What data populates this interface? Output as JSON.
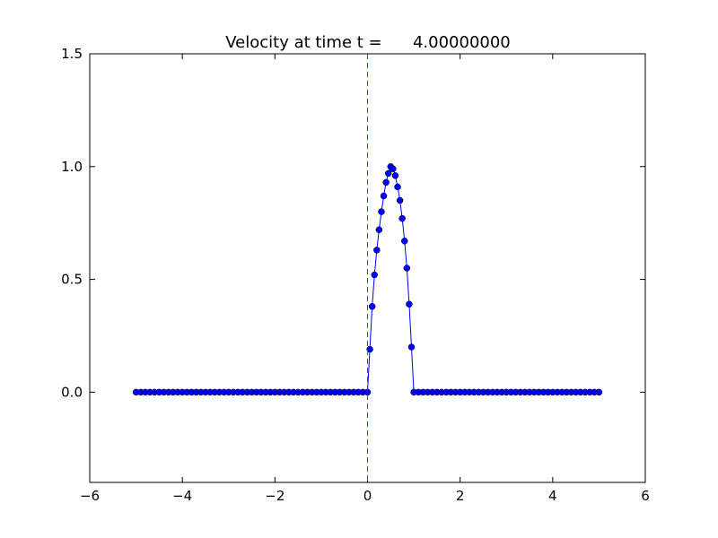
{
  "chart_data": {
    "type": "line",
    "title": "Velocity at time t =      4.00000000",
    "x": [
      -5,
      -4.9,
      -4.8,
      -4.7,
      -4.6,
      -4.5,
      -4.4,
      -4.3,
      -4.2,
      -4.1,
      -4,
      -3.9,
      -3.8,
      -3.7,
      -3.6,
      -3.5,
      -3.4,
      -3.3,
      -3.2,
      -3.1,
      -3,
      -2.9,
      -2.8,
      -2.7,
      -2.6,
      -2.5,
      -2.4,
      -2.3,
      -2.2,
      -2.1,
      -2,
      -1.9,
      -1.8,
      -1.7,
      -1.6,
      -1.5,
      -1.4,
      -1.3,
      -1.2,
      -1.1,
      -1,
      -0.9,
      -0.8,
      -0.7,
      -0.6,
      -0.5,
      -0.4,
      -0.3,
      -0.2,
      -0.1,
      0,
      0.05,
      0.1,
      0.15,
      0.2,
      0.25,
      0.3,
      0.35,
      0.4,
      0.45,
      0.5,
      0.55,
      0.6,
      0.65,
      0.7,
      0.75,
      0.8,
      0.85,
      0.9,
      0.95,
      1,
      1.1,
      1.2,
      1.3,
      1.4,
      1.5,
      1.6,
      1.7,
      1.8,
      1.9,
      2,
      2.1,
      2.2,
      2.3,
      2.4,
      2.5,
      2.6,
      2.7,
      2.8,
      2.9,
      3,
      3.1,
      3.2,
      3.3,
      3.4,
      3.5,
      3.6,
      3.7,
      3.8,
      3.9,
      4,
      4.1,
      4.2,
      4.3,
      4.4,
      4.5,
      4.6,
      4.7,
      4.8,
      4.9,
      5
    ],
    "series": [
      {
        "color": "#0000ff",
        "values": [
          0,
          0,
          0,
          0,
          0,
          0,
          0,
          0,
          0,
          0,
          0,
          0,
          0,
          0,
          0,
          0,
          0,
          0,
          0,
          0,
          0,
          0,
          0,
          0,
          0,
          0,
          0,
          0,
          0,
          0,
          0,
          0,
          0,
          0,
          0,
          0,
          0,
          0,
          0,
          0,
          0,
          0,
          0,
          0,
          0,
          0,
          0,
          0,
          0,
          0,
          0,
          0.19,
          0.38,
          0.52,
          0.63,
          0.72,
          0.8,
          0.87,
          0.93,
          0.97,
          1,
          0.99,
          0.96,
          0.91,
          0.85,
          0.77,
          0.67,
          0.55,
          0.39,
          0.2,
          0,
          0,
          0,
          0,
          0,
          0,
          0,
          0,
          0,
          0,
          0,
          0,
          0,
          0,
          0,
          0,
          0,
          0,
          0,
          0,
          0,
          0,
          0,
          0,
          0,
          0,
          0,
          0,
          0,
          0,
          0,
          0,
          0,
          0,
          0,
          0,
          0,
          0,
          0,
          0,
          0
        ]
      }
    ],
    "vlines": [
      {
        "x": 0,
        "color": "#ff0000"
      }
    ],
    "xlim": [
      -6,
      6
    ],
    "ylim": [
      -0.4,
      1.5
    ],
    "xticks": [
      {
        "value": -6,
        "label": "−6"
      },
      {
        "value": -4,
        "label": "−4"
      },
      {
        "value": -2,
        "label": "−2"
      },
      0,
      2,
      4,
      6
    ],
    "yticks": [
      {
        "value": 0,
        "label": "0.0"
      },
      {
        "value": 0.5,
        "label": "0.5"
      },
      {
        "value": 1,
        "label": "1.0"
      },
      {
        "value": 1.5,
        "label": "1.5"
      }
    ]
  }
}
